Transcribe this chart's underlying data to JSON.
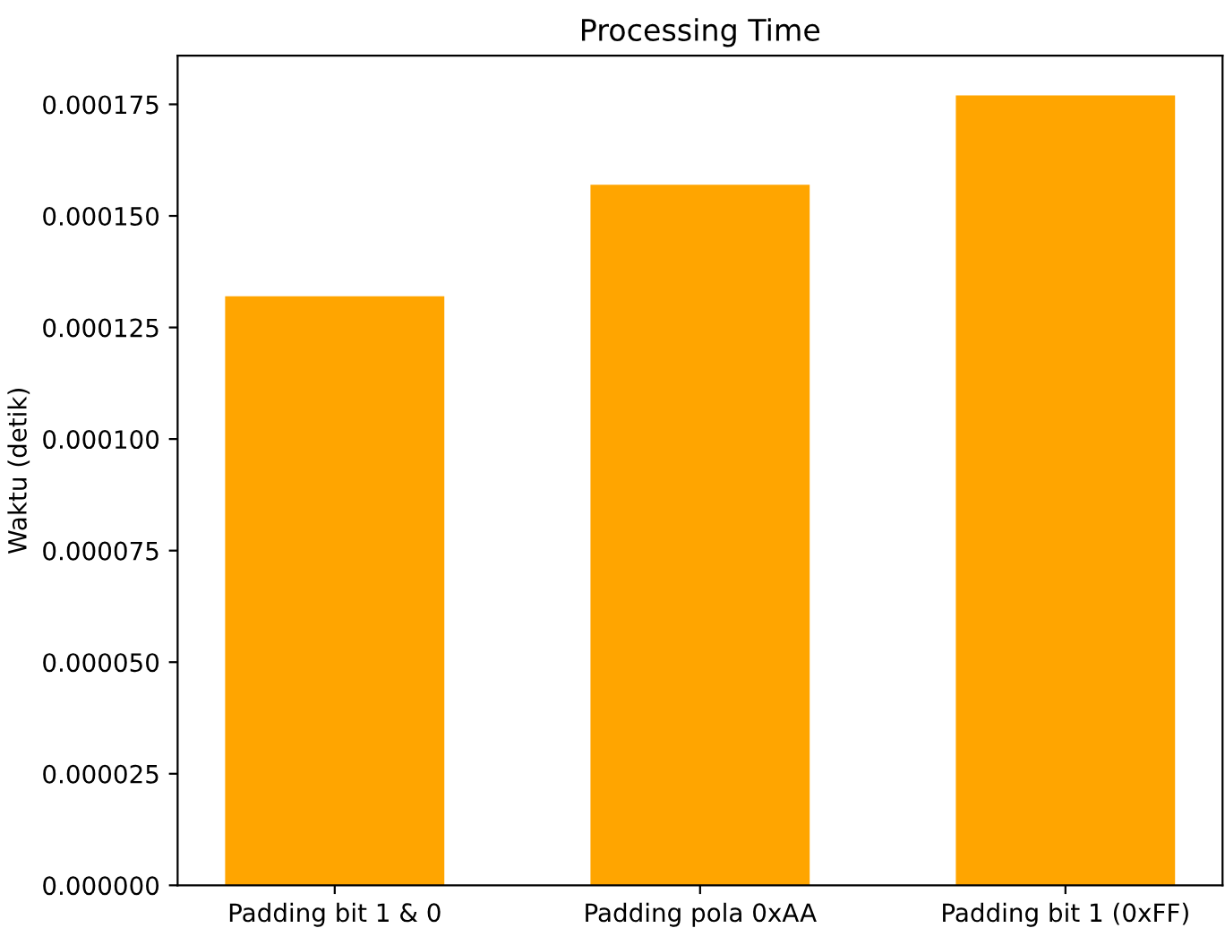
{
  "chart_data": {
    "type": "bar",
    "title": "Processing Time",
    "ylabel": "Waktu (detik)",
    "categories": [
      "Padding bit 1 & 0",
      "Padding pola 0xAA",
      "Padding bit 1 (0xFF)"
    ],
    "values": [
      0.000132,
      0.000157,
      0.000177
    ],
    "color": "#ffa500",
    "ylim": [
      0,
      0.0001859
    ],
    "yticks": [
      {
        "value": 0,
        "label": "0.000000"
      },
      {
        "value": 2.5e-05,
        "label": "0.000025"
      },
      {
        "value": 5e-05,
        "label": "0.000050"
      },
      {
        "value": 7.5e-05,
        "label": "0.000075"
      },
      {
        "value": 0.0001,
        "label": "0.000100"
      },
      {
        "value": 0.000125,
        "label": "0.000125"
      },
      {
        "value": 0.00015,
        "label": "0.000150"
      },
      {
        "value": 0.000175,
        "label": "0.000175"
      }
    ]
  }
}
